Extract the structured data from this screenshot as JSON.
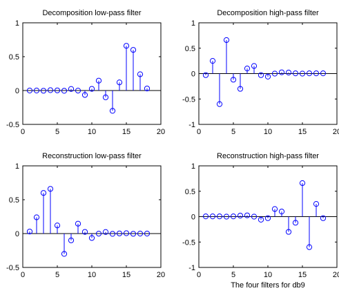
{
  "chart_data": [
    {
      "type": "stem",
      "title": "Decomposition low-pass filter",
      "xlabel": "",
      "xlim": [
        0,
        20
      ],
      "ylim": [
        -0.5,
        1
      ],
      "xticks": [
        0,
        5,
        10,
        15,
        20
      ],
      "yticks": [
        -0.5,
        0,
        0.5,
        1
      ],
      "x": [
        1,
        2,
        3,
        4,
        5,
        6,
        7,
        8,
        9,
        10,
        11,
        12,
        13,
        14,
        15,
        16,
        17,
        18
      ],
      "values": [
        0.0,
        0.0,
        -0.003,
        0.005,
        0.002,
        -0.004,
        0.023,
        -0.001,
        -0.065,
        0.025,
        0.146,
        -0.1,
        -0.3,
        0.12,
        0.66,
        0.6,
        0.24,
        0.03
      ]
    },
    {
      "type": "stem",
      "title": "Decomposition high-pass filter",
      "xlabel": "",
      "xlim": [
        0,
        20
      ],
      "ylim": [
        -1,
        1
      ],
      "xticks": [
        0,
        5,
        10,
        15,
        20
      ],
      "yticks": [
        -1,
        -0.5,
        0,
        0.5,
        1
      ],
      "x": [
        1,
        2,
        3,
        4,
        5,
        6,
        7,
        8,
        9,
        10,
        11,
        12,
        13,
        14,
        15,
        16,
        17,
        18
      ],
      "values": [
        -0.03,
        0.25,
        -0.6,
        0.66,
        -0.12,
        -0.3,
        0.1,
        0.15,
        -0.03,
        -0.06,
        0.0,
        0.025,
        0.02,
        0.005,
        0.0,
        0.005,
        0.005,
        0.005
      ]
    },
    {
      "type": "stem",
      "title": "Reconstruction low-pass filter",
      "xlabel": "",
      "xlim": [
        0,
        20
      ],
      "ylim": [
        -0.5,
        1
      ],
      "xticks": [
        0,
        5,
        10,
        15,
        20
      ],
      "yticks": [
        -0.5,
        0,
        0.5,
        1
      ],
      "x": [
        1,
        2,
        3,
        4,
        5,
        6,
        7,
        8,
        9,
        10,
        11,
        12,
        13,
        14,
        15,
        16,
        17,
        18
      ],
      "values": [
        0.03,
        0.24,
        0.6,
        0.66,
        0.12,
        -0.3,
        -0.1,
        0.146,
        0.025,
        -0.065,
        -0.001,
        0.023,
        -0.004,
        0.002,
        0.005,
        -0.003,
        0.0,
        0.0
      ]
    },
    {
      "type": "stem",
      "title": "Reconstruction high-pass filter",
      "xlabel": "The four filters for db9",
      "xlim": [
        0,
        20
      ],
      "ylim": [
        -1,
        1
      ],
      "xticks": [
        0,
        5,
        10,
        15,
        20
      ],
      "yticks": [
        -1,
        -0.5,
        0,
        0.5,
        1
      ],
      "x": [
        1,
        2,
        3,
        4,
        5,
        6,
        7,
        8,
        9,
        10,
        11,
        12,
        13,
        14,
        15,
        16,
        17,
        18
      ],
      "values": [
        0.005,
        0.005,
        0.005,
        0.0,
        0.005,
        0.02,
        0.025,
        0.0,
        -0.06,
        -0.03,
        0.15,
        0.1,
        -0.3,
        -0.12,
        0.66,
        -0.6,
        0.25,
        -0.03
      ]
    }
  ],
  "colors": {
    "stem": "#0000ff",
    "axes": "#000000",
    "background": "#ffffff"
  }
}
